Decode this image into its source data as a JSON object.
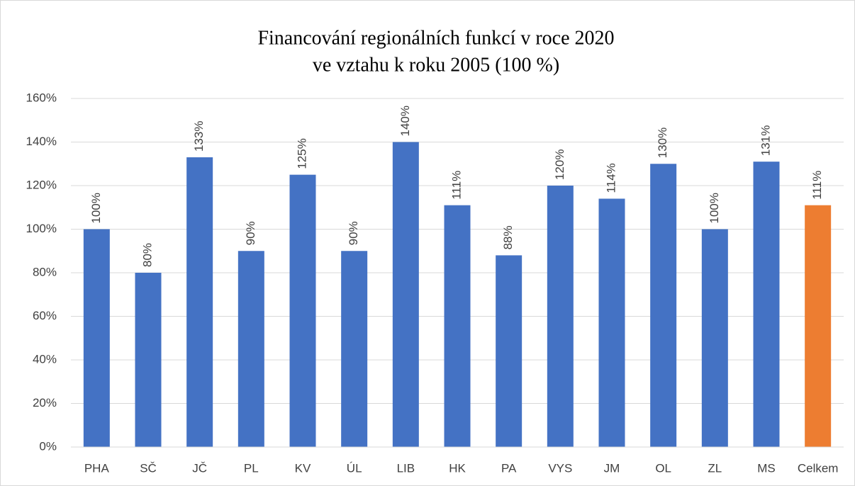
{
  "chart_data": {
    "type": "bar",
    "title": [
      "Financování regionálních funkcí v roce 2020",
      "ve vztahu k roku 2005 (100 %)"
    ],
    "categories": [
      "PHA",
      "SČ",
      "JČ",
      "PL",
      "KV",
      "ÚL",
      "LIB",
      "HK",
      "PA",
      "VYS",
      "JM",
      "OL",
      "ZL",
      "MS",
      "Celkem"
    ],
    "values": [
      100,
      80,
      133,
      90,
      125,
      90,
      140,
      111,
      88,
      120,
      114,
      130,
      100,
      131,
      111
    ],
    "value_labels": [
      "100%",
      "80%",
      "133%",
      "90%",
      "125%",
      "90%",
      "140%",
      "111%",
      "88%",
      "120%",
      "114%",
      "130%",
      "100%",
      "131%",
      "111%"
    ],
    "colors": [
      "#4472c4",
      "#4472c4",
      "#4472c4",
      "#4472c4",
      "#4472c4",
      "#4472c4",
      "#4472c4",
      "#4472c4",
      "#4472c4",
      "#4472c4",
      "#4472c4",
      "#4472c4",
      "#4472c4",
      "#4472c4",
      "#ed7d31"
    ],
    "ylim": [
      0,
      160
    ],
    "yticks": [
      {
        "value": 0,
        "label": "0%"
      },
      {
        "value": 20,
        "label": "20%"
      },
      {
        "value": 40,
        "label": "40%"
      },
      {
        "value": 60,
        "label": "60%"
      },
      {
        "value": 80,
        "label": "80%"
      },
      {
        "value": 100,
        "label": "100%"
      },
      {
        "value": 120,
        "label": "120%"
      },
      {
        "value": 140,
        "label": "140%"
      },
      {
        "value": 160,
        "label": "160%"
      }
    ],
    "grid": true
  }
}
